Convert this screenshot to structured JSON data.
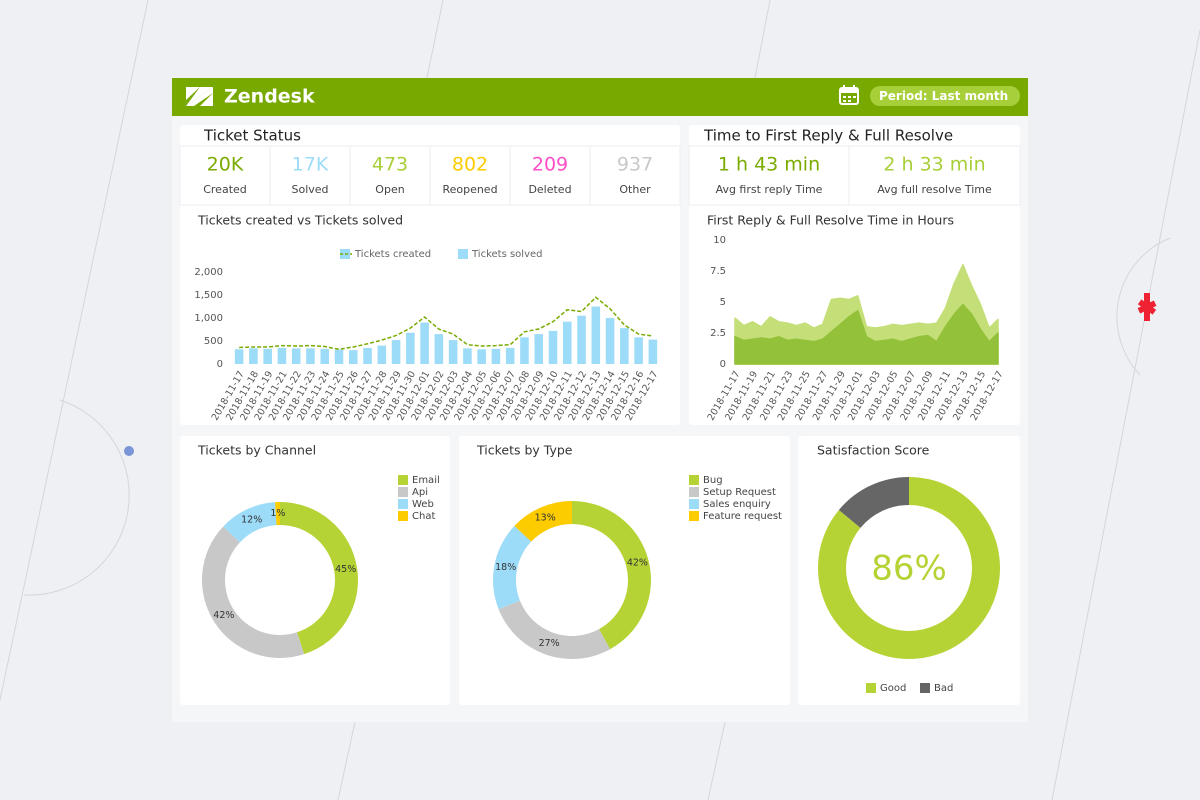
{
  "header": {
    "title": "Zendesk",
    "period": "Period: Last month"
  },
  "ticket_status": {
    "title": "Ticket Status",
    "items": [
      {
        "value": "20K",
        "label": "Created",
        "color": "#7aab00"
      },
      {
        "value": "17K",
        "label": "Solved",
        "color": "#9ddcf9"
      },
      {
        "value": 473,
        "label": "Open",
        "color": "#a8cf38"
      },
      {
        "value": 802,
        "label": "Reopened",
        "color": "#fccb00"
      },
      {
        "value": 209,
        "label": "Deleted",
        "color": "#ff4fc8"
      },
      {
        "value": 937,
        "label": "Other",
        "color": "#c8c8c8"
      }
    ]
  },
  "time_to_reply": {
    "title": "Time to First Reply & Full Resolve",
    "items": [
      {
        "value": "1 h 43 min",
        "label": "Avg first reply Time",
        "color": "#7aab00"
      },
      {
        "value": "2 h 33 min",
        "label": "Avg full resolve Time",
        "color": "#a8cf38"
      }
    ]
  },
  "chart_data": [
    {
      "type": "bar",
      "title": "Tickets created vs Tickets solved",
      "categories": [
        "2018-11-17",
        "2018-11-18",
        "2018-11-19",
        "2018-11-21",
        "2018-11-22",
        "2018-11-23",
        "2018-11-24",
        "2018-11-25",
        "2018-11-26",
        "2018-11-27",
        "2018-11-28",
        "2018-11-29",
        "2018-11-30",
        "2018-12-01",
        "2018-12-02",
        "2018-12-03",
        "2018-12-04",
        "2018-12-05",
        "2018-12-06",
        "2018-12-07",
        "2018-12-08",
        "2018-12-09",
        "2018-12-10",
        "2018-12-11",
        "2018-12-12",
        "2018-12-13",
        "2018-12-14",
        "2018-12-15",
        "2018-12-16",
        "2018-12-17"
      ],
      "series": [
        {
          "name": "Tickets created",
          "type": "line",
          "dashed": true,
          "color": "#7aab00",
          "values": [
            360,
            370,
            370,
            400,
            390,
            400,
            380,
            320,
            370,
            440,
            520,
            620,
            780,
            1020,
            760,
            650,
            420,
            390,
            400,
            420,
            700,
            760,
            920,
            1180,
            1140,
            1450,
            1200,
            850,
            650,
            610
          ]
        },
        {
          "name": "Tickets solved",
          "type": "bar",
          "color": "#9ddcf9",
          "values": [
            320,
            340,
            330,
            350,
            340,
            340,
            330,
            310,
            300,
            350,
            400,
            520,
            680,
            900,
            650,
            520,
            340,
            320,
            330,
            350,
            580,
            650,
            720,
            920,
            1050,
            1250,
            1000,
            780,
            580,
            530
          ]
        }
      ],
      "ylim": [
        0,
        2000
      ],
      "yticks": [
        0,
        500,
        {
          "value": 1000,
          "label": "1,000"
        },
        {
          "value": 1500,
          "label": "1,500"
        },
        {
          "value": 2000,
          "label": "2,000"
        }
      ],
      "legend": "top"
    },
    {
      "type": "area",
      "title": "First Reply & Full Resolve Time in Hours",
      "categories": [
        "2018-11-17",
        null,
        "2018-11-19",
        null,
        "2018-11-21",
        null,
        "2018-11-23",
        null,
        "2018-11-25",
        null,
        "2018-11-27",
        null,
        "2018-11-29",
        null,
        "2018-12-01",
        null,
        "2018-12-03",
        null,
        "2018-12-05",
        null,
        "2018-12-07",
        null,
        "2018-12-09",
        null,
        "2018-12-11",
        null,
        "2018-12-13",
        null,
        "2018-12-15",
        null,
        "2018-12-17"
      ],
      "series": [
        {
          "color": "#c4df78",
          "values": [
            3.7,
            3.1,
            3.4,
            3.0,
            3.8,
            3.4,
            3.3,
            3.1,
            3.3,
            2.9,
            3.2,
            5.2,
            5.3,
            5.2,
            5.5,
            3.0,
            2.9,
            3.0,
            3.2,
            3.1,
            3.2,
            3.3,
            3.2,
            3.3,
            4.5,
            6.5,
            8.0,
            6.3,
            4.8,
            2.9,
            3.6
          ]
        },
        {
          "color": "#93c13a",
          "values": [
            2.2,
            1.9,
            2.0,
            2.1,
            2.0,
            2.2,
            1.9,
            2.0,
            1.9,
            1.8,
            2.0,
            2.6,
            3.2,
            3.8,
            4.3,
            2.2,
            1.8,
            1.9,
            2.0,
            1.8,
            2.0,
            2.2,
            2.3,
            1.8,
            3.0,
            4.0,
            4.8,
            4.0,
            2.8,
            1.8,
            2.5
          ]
        }
      ],
      "ylim": [
        0,
        10
      ],
      "yticks": [
        0,
        2.5,
        5,
        7.5,
        10
      ]
    },
    {
      "type": "donut",
      "title": "Tickets by Channel",
      "categories": [
        "Email",
        "Api",
        "Web",
        "Chat"
      ],
      "values": [
        45,
        42,
        12,
        1
      ],
      "value_labels": [
        "45%",
        "42%",
        "12%",
        "1%"
      ],
      "colors": [
        "#b5d334",
        "#c8c8c8",
        "#9ddcf9",
        "#fccb00"
      ],
      "legend": "top-right"
    },
    {
      "type": "donut",
      "title": "Tickets by Type",
      "categories": [
        "Bug",
        "Setup Request",
        "Sales enquiry",
        "Feature request"
      ],
      "values": [
        42,
        27,
        18,
        13
      ],
      "value_labels": [
        "42%",
        "27%",
        "18%",
        "13%"
      ],
      "colors": [
        "#b5d334",
        "#c8c8c8",
        "#9ddcf9",
        "#fccb00"
      ],
      "legend": "top-right"
    },
    {
      "type": "donut",
      "title": "Satisfaction Score",
      "categories": [
        "Good",
        "Bad"
      ],
      "values": [
        86,
        14
      ],
      "center_label": "86%",
      "colors": [
        "#b5d334",
        "#666666"
      ],
      "legend": "bottom"
    }
  ]
}
